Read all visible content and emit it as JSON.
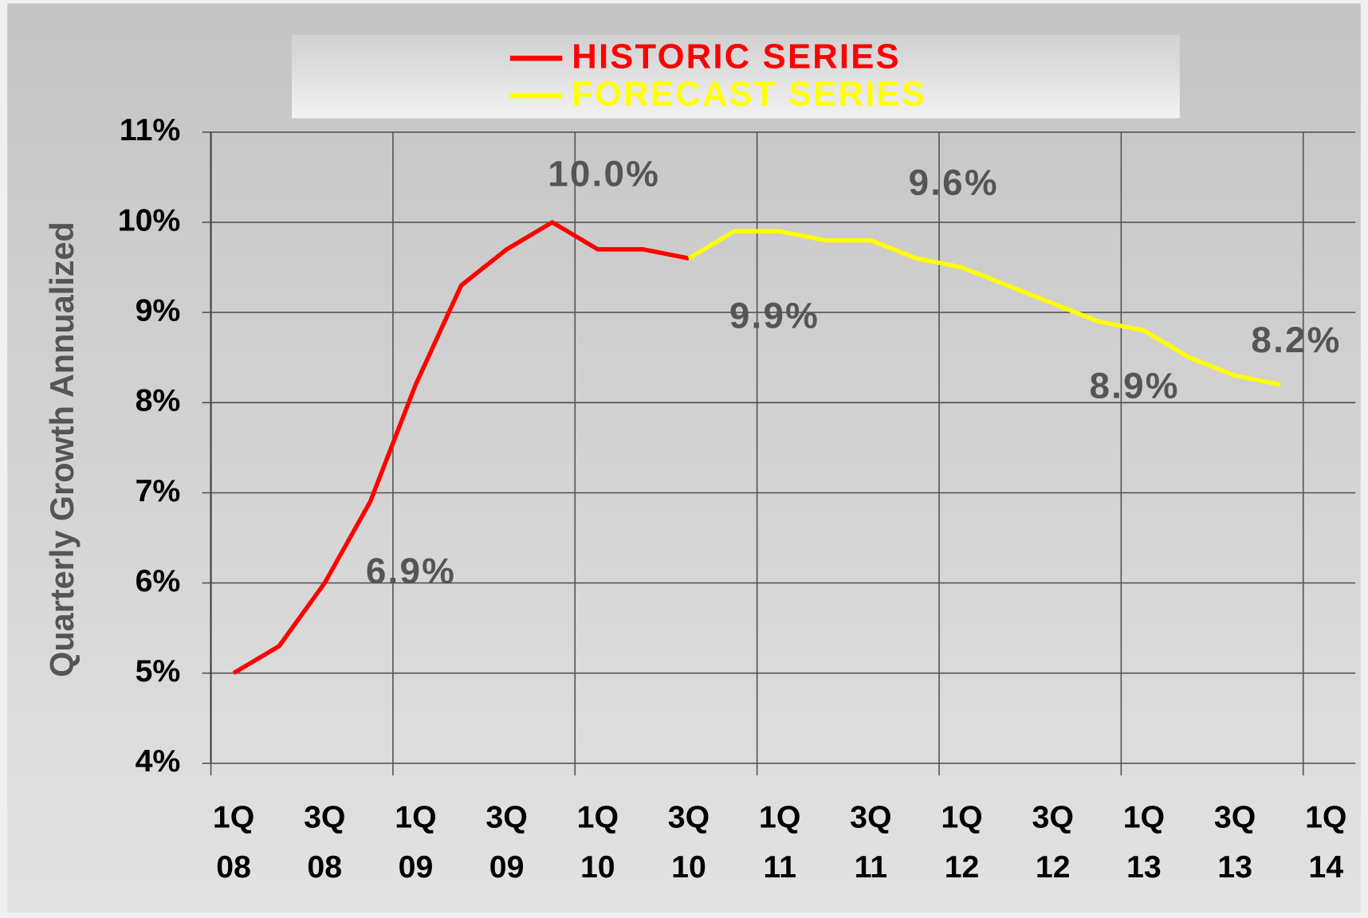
{
  "chart_data": {
    "type": "line",
    "y_axis_label": "Quarterly Growth Annualized",
    "categories": [
      "1Q 08",
      null,
      "3Q 08",
      null,
      "1Q 09",
      null,
      "3Q 09",
      null,
      "1Q 10",
      null,
      "3Q 10",
      null,
      "1Q 11",
      null,
      "3Q 11",
      null,
      "1Q 12",
      null,
      "3Q 12",
      null,
      "1Q 13",
      null,
      "3Q 13",
      null,
      "1Q 14"
    ],
    "series": [
      {
        "name": "HISTORIC SERIES",
        "color": "#ff0000",
        "values": [
          5.0,
          5.3,
          6.0,
          6.9,
          8.2,
          9.3,
          9.7,
          10.0,
          9.7,
          9.7,
          9.6,
          null,
          null,
          null,
          null,
          null,
          null,
          null,
          null,
          null,
          null,
          null,
          null,
          null,
          null
        ]
      },
      {
        "name": "FORECAST SERIES",
        "color": "#ffff00",
        "values": [
          null,
          null,
          null,
          null,
          null,
          null,
          null,
          null,
          null,
          null,
          9.6,
          9.9,
          9.9,
          9.8,
          9.8,
          9.6,
          9.5,
          9.3,
          9.1,
          8.9,
          8.8,
          8.5,
          8.3,
          8.2,
          null
        ]
      }
    ],
    "ylim": [
      4,
      11
    ],
    "yticks": [
      {
        "value": 4,
        "label": "4%"
      },
      {
        "value": 5,
        "label": "5%"
      },
      {
        "value": 6,
        "label": "6%"
      },
      {
        "value": 7,
        "label": "7%"
      },
      {
        "value": 8,
        "label": "8%"
      },
      {
        "value": 9,
        "label": "9%"
      },
      {
        "value": 10,
        "label": "10%"
      },
      {
        "value": 11,
        "label": "11%"
      }
    ],
    "annotations": [
      "10.0%",
      "9.6%",
      "9.9%",
      "8.9%",
      "8.2%",
      "6.9%"
    ],
    "grid": true,
    "legend": "top"
  }
}
